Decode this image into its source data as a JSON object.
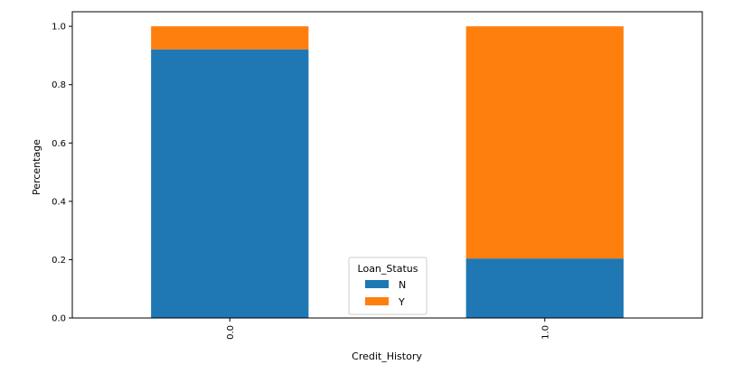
{
  "chart_data": {
    "type": "bar",
    "stacked": true,
    "categories": [
      "0.0",
      "1.0"
    ],
    "series": [
      {
        "name": "N",
        "values": [
          0.921,
          0.204
        ],
        "color": "#1f77b4"
      },
      {
        "name": "Y",
        "values": [
          0.079,
          0.796
        ],
        "color": "#ff7f0e"
      }
    ],
    "xlabel": "Credit_History",
    "ylabel": "Percentage",
    "ylim": [
      0,
      1.05
    ],
    "yticks": [
      "0.0",
      "0.2",
      "0.4",
      "0.6",
      "0.8",
      "1.0"
    ],
    "ytick_values": [
      0,
      0.2,
      0.4,
      0.6,
      0.8,
      1.0
    ],
    "grid": false,
    "legend": {
      "title": "Loan_Status",
      "placement": "bottom-center",
      "entries": [
        "N",
        "Y"
      ]
    }
  }
}
